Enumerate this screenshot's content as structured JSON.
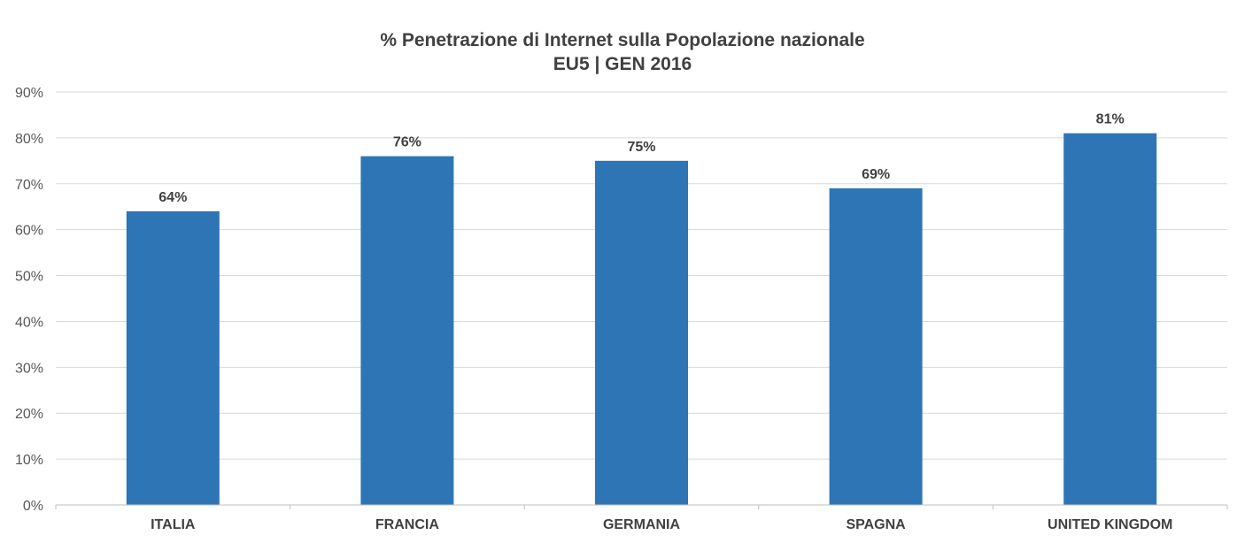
{
  "chart_data": {
    "type": "bar",
    "title": "% Penetrazione di Internet sulla Popolazione nazionale",
    "subtitle": "EU5 | GEN 2016",
    "xlabel": "",
    "ylabel": "",
    "categories": [
      "ITALIA",
      "FRANCIA",
      "GERMANIA",
      "SPAGNA",
      "UNITED KINGDOM"
    ],
    "values": [
      64,
      76,
      75,
      69,
      81
    ],
    "data_labels": [
      "64%",
      "76%",
      "75%",
      "69%",
      "81%"
    ],
    "ylim": [
      0,
      90
    ],
    "yticks": [
      0,
      10,
      20,
      30,
      40,
      50,
      60,
      70,
      80,
      90
    ],
    "ytick_labels": [
      "0%",
      "10%",
      "20%",
      "30%",
      "40%",
      "50%",
      "60%",
      "70%",
      "80%",
      "90%"
    ],
    "grid": true,
    "legend": "none",
    "colors": {
      "bar": "#2E75B6",
      "grid": "#D9D9D9",
      "axis": "#BFBFBF"
    }
  }
}
